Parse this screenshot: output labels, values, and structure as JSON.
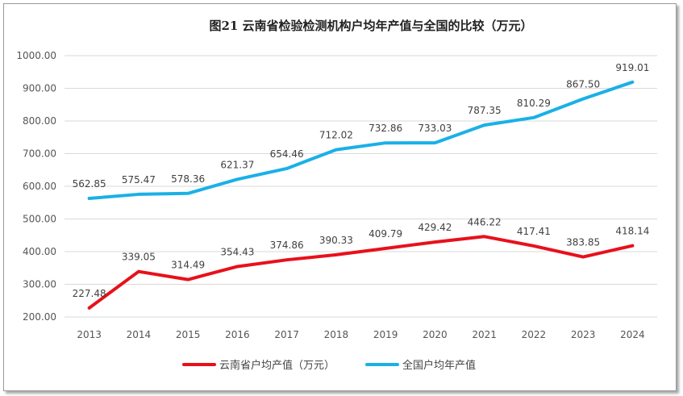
{
  "chart_data": {
    "type": "line",
    "title": "图21  云南省检验检测机构户均年产值与全国的比较（万元）",
    "categories": [
      "2013",
      "2014",
      "2015",
      "2016",
      "2017",
      "2018",
      "2019",
      "2020",
      "2021",
      "2022",
      "2023",
      "2024"
    ],
    "ylim": [
      200,
      1000
    ],
    "yticks": [
      "200.00",
      "300.00",
      "400.00",
      "500.00",
      "600.00",
      "700.00",
      "800.00",
      "900.00",
      "1000.00"
    ],
    "grid": true,
    "legend_position": "bottom",
    "series": [
      {
        "name": "云南省户均产值（万元）",
        "color": "#e8101b",
        "values": [
          227.48,
          339.05,
          314.49,
          354.43,
          374.86,
          390.33,
          409.79,
          429.42,
          446.22,
          417.41,
          383.85,
          418.14
        ],
        "labels": [
          "227.48",
          "339.05",
          "314.49",
          "354.43",
          "374.86",
          "390.33",
          "409.79",
          "429.42",
          "446.22",
          "417.41",
          "383.85",
          "418.14"
        ]
      },
      {
        "name": "全国户均年产值",
        "color": "#1ab0e8",
        "values": [
          562.85,
          575.47,
          578.36,
          621.37,
          654.46,
          712.02,
          732.86,
          733.03,
          787.35,
          810.29,
          867.5,
          919.01
        ],
        "labels": [
          "562.85",
          "575.47",
          "578.36",
          "621.37",
          "654.46",
          "712.02",
          "732.86",
          "733.03",
          "787.35",
          "810.29",
          "867.50",
          "919.01"
        ]
      }
    ]
  }
}
